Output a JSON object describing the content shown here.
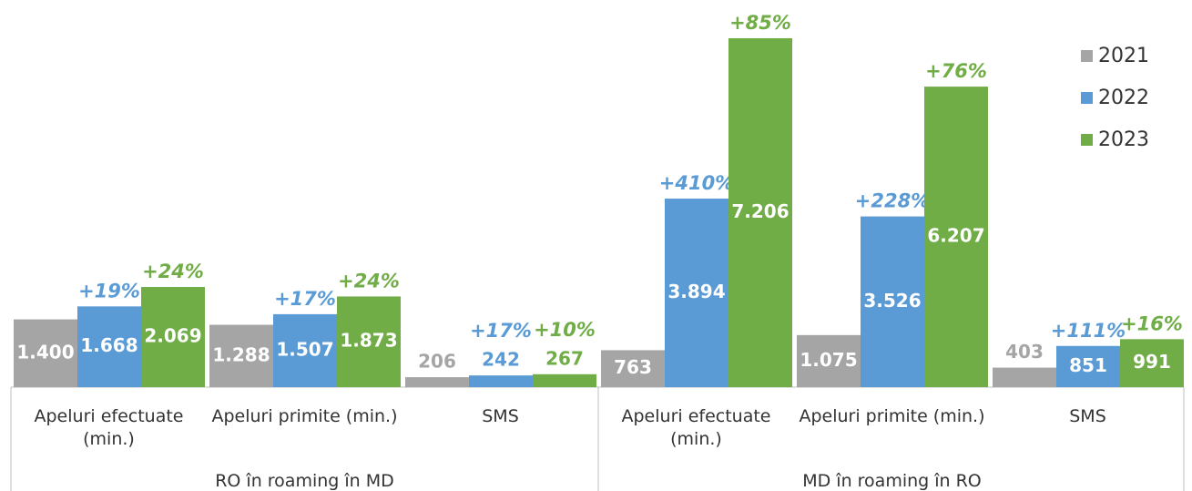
{
  "chart_data": {
    "type": "bar",
    "groups": [
      {
        "label": "RO în roaming în MD",
        "categories": [
          "Apeluri efectuate (min.)",
          "Apeluri primite (min.)",
          "SMS"
        ]
      },
      {
        "label": "MD în roaming în RO",
        "categories": [
          "Apeluri efectuate (min.)",
          "Apeluri primite (min.)",
          "SMS"
        ]
      }
    ],
    "series": [
      {
        "name": "2021",
        "color": "#a5a5a5",
        "values": [
          1400,
          1288,
          206,
          763,
          1075,
          403
        ],
        "value_labels": [
          "1.400",
          "1.288",
          "206",
          "763",
          "1.075",
          "403"
        ]
      },
      {
        "name": "2022",
        "color": "#5b9bd5",
        "values": [
          1668,
          1507,
          242,
          3894,
          3526,
          851
        ],
        "value_labels": [
          "1.668",
          "1.507",
          "242",
          "3.894",
          "3.526",
          "851"
        ],
        "change_labels": [
          "+19%",
          "+17%",
          "+17%",
          "+410%",
          "+228%",
          "+111%"
        ]
      },
      {
        "name": "2023",
        "color": "#70ad47",
        "values": [
          2069,
          1873,
          267,
          7206,
          6207,
          991
        ],
        "value_labels": [
          "2.069",
          "1.873",
          "267",
          "7.206",
          "6.207",
          "991"
        ],
        "change_labels": [
          "+24%",
          "+24%",
          "+10%",
          "+85%",
          "+76%",
          "+16%"
        ]
      }
    ],
    "legend": "top-right"
  }
}
